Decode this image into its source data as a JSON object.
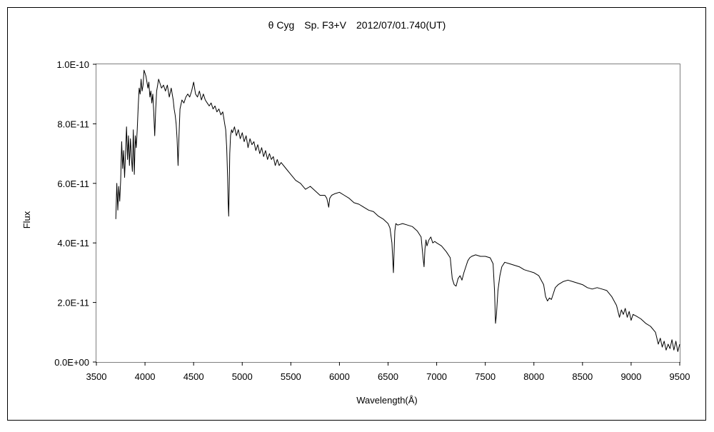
{
  "chart_data": {
    "type": "line",
    "title": "θ Cyg　Sp. F3+V　2012/07/01.740(UT)",
    "xlabel": "Wavelength(Å)",
    "ylabel": "Flux",
    "xlim": [
      3500,
      9500
    ],
    "ylim": [
      0,
      1e-10
    ],
    "x_ticks": [
      3500,
      4000,
      4500,
      5000,
      5500,
      6000,
      6500,
      7000,
      7500,
      8000,
      8500,
      9000,
      9500
    ],
    "x_tick_labels": [
      "3500",
      "4000",
      "4500",
      "5000",
      "5500",
      "6000",
      "6500",
      "7000",
      "7500",
      "8000",
      "8500",
      "9000",
      "9500"
    ],
    "y_ticks": [
      0,
      2e-11,
      4e-11,
      6e-11,
      8e-11,
      1e-10
    ],
    "y_tick_labels": [
      "0.0E+00",
      "2.0E-11",
      "4.0E-11",
      "6.0E-11",
      "8.0E-11",
      "1.0E-10"
    ],
    "grid": false,
    "legend": "none",
    "series": [
      {
        "color": "#000000",
        "x": [
          3700,
          3710,
          3720,
          3730,
          3740,
          3750,
          3760,
          3770,
          3780,
          3790,
          3800,
          3810,
          3820,
          3830,
          3840,
          3850,
          3860,
          3870,
          3880,
          3890,
          3900,
          3910,
          3920,
          3930,
          3940,
          3950,
          3960,
          3970,
          3980,
          3990,
          4000,
          4010,
          4020,
          4030,
          4040,
          4050,
          4060,
          4070,
          4080,
          4090,
          4100,
          4110,
          4120,
          4130,
          4140,
          4150,
          4170,
          4190,
          4210,
          4230,
          4250,
          4270,
          4290,
          4300,
          4310,
          4320,
          4330,
          4340,
          4350,
          4360,
          4380,
          4400,
          4420,
          4440,
          4460,
          4480,
          4500,
          4520,
          4540,
          4560,
          4580,
          4600,
          4620,
          4640,
          4660,
          4680,
          4700,
          4720,
          4740,
          4760,
          4780,
          4800,
          4810,
          4820,
          4830,
          4840,
          4850,
          4855,
          4861,
          4866,
          4872,
          4880,
          4890,
          4900,
          4920,
          4940,
          4960,
          4980,
          5000,
          5020,
          5040,
          5060,
          5080,
          5100,
          5120,
          5140,
          5160,
          5180,
          5200,
          5220,
          5240,
          5260,
          5280,
          5300,
          5320,
          5340,
          5360,
          5380,
          5400,
          5450,
          5500,
          5550,
          5600,
          5650,
          5700,
          5750,
          5800,
          5850,
          5870,
          5880,
          5890,
          5900,
          5920,
          5950,
          6000,
          6050,
          6100,
          6150,
          6200,
          6250,
          6300,
          6350,
          6400,
          6450,
          6500,
          6520,
          6540,
          6555,
          6563,
          6570,
          6580,
          6600,
          6650,
          6700,
          6750,
          6800,
          6840,
          6860,
          6870,
          6880,
          6890,
          6900,
          6920,
          6940,
          6960,
          6980,
          7000,
          7050,
          7100,
          7140,
          7160,
          7180,
          7200,
          7220,
          7240,
          7260,
          7280,
          7300,
          7320,
          7340,
          7360,
          7400,
          7450,
          7500,
          7550,
          7580,
          7595,
          7605,
          7615,
          7630,
          7650,
          7670,
          7700,
          7750,
          7800,
          7850,
          7900,
          7950,
          8000,
          8050,
          8100,
          8120,
          8140,
          8160,
          8180,
          8200,
          8220,
          8250,
          8300,
          8350,
          8400,
          8450,
          8500,
          8550,
          8600,
          8650,
          8700,
          8750,
          8800,
          8850,
          8880,
          8900,
          8920,
          8940,
          8960,
          8980,
          9000,
          9020,
          9050,
          9100,
          9150,
          9200,
          9250,
          9280,
          9300,
          9320,
          9340,
          9360,
          9380,
          9400,
          9420,
          9440,
          9460,
          9480,
          9500
        ],
        "y": [
          4.8e-11,
          6e-11,
          5.1e-11,
          5.9e-11,
          5.4e-11,
          6.1e-11,
          7.4e-11,
          6.5e-11,
          7.1e-11,
          6.2e-11,
          7e-11,
          7.9e-11,
          6.8e-11,
          7.6e-11,
          6.6e-11,
          7.5e-11,
          6.9e-11,
          6.4e-11,
          7.8e-11,
          6.3e-11,
          7.6e-11,
          7.2e-11,
          7.8e-11,
          8.6e-11,
          9.2e-11,
          9e-11,
          9.5e-11,
          9.1e-11,
          9.3e-11,
          9.8e-11,
          9.7e-11,
          9.6e-11,
          9.4e-11,
          9.2e-11,
          9.4e-11,
          8.9e-11,
          9.1e-11,
          8.7e-11,
          9e-11,
          8.4e-11,
          7.6e-11,
          8.5e-11,
          9.1e-11,
          9.3e-11,
          9.5e-11,
          9.4e-11,
          9.2e-11,
          9.3e-11,
          9.1e-11,
          9.3e-11,
          8.9e-11,
          9.2e-11,
          8.8e-11,
          8.5e-11,
          8.3e-11,
          8e-11,
          7.5e-11,
          6.6e-11,
          7.6e-11,
          8.5e-11,
          8.8e-11,
          8.7e-11,
          8.9e-11,
          9e-11,
          8.9e-11,
          9.1e-11,
          9.4e-11,
          9e-11,
          8.9e-11,
          9.1e-11,
          8.8e-11,
          9e-11,
          8.8e-11,
          8.7e-11,
          8.6e-11,
          8.7e-11,
          8.5e-11,
          8.6e-11,
          8.4e-11,
          8.5e-11,
          8.3e-11,
          8.4e-11,
          8.2e-11,
          8e-11,
          7.8e-11,
          7.2e-11,
          6.2e-11,
          5.4e-11,
          4.9e-11,
          5.8e-11,
          7e-11,
          7.6e-11,
          7.8e-11,
          7.7e-11,
          7.9e-11,
          7.6e-11,
          7.8e-11,
          7.5e-11,
          7.7e-11,
          7.4e-11,
          7.6e-11,
          7.2e-11,
          7.5e-11,
          7.3e-11,
          7.4e-11,
          7.1e-11,
          7.3e-11,
          7e-11,
          7.2e-11,
          6.9e-11,
          7.1e-11,
          6.8e-11,
          7e-11,
          6.8e-11,
          6.9e-11,
          6.6e-11,
          6.8e-11,
          6.6e-11,
          6.7e-11,
          6.5e-11,
          6.3e-11,
          6.1e-11,
          6e-11,
          5.8e-11,
          5.9e-11,
          5.75e-11,
          5.6e-11,
          5.6e-11,
          5.5e-11,
          5.35e-11,
          5.2e-11,
          5.5e-11,
          5.6e-11,
          5.65e-11,
          5.7e-11,
          5.6e-11,
          5.5e-11,
          5.35e-11,
          5.3e-11,
          5.2e-11,
          5.1e-11,
          5.05e-11,
          4.9e-11,
          4.8e-11,
          4.65e-11,
          4.5e-11,
          4e-11,
          3e-11,
          3.8e-11,
          4.4e-11,
          4.65e-11,
          4.6e-11,
          4.65e-11,
          4.6e-11,
          4.55e-11,
          4.4e-11,
          4.2e-11,
          3.5e-11,
          3.2e-11,
          3.8e-11,
          4.1e-11,
          3.9e-11,
          4.1e-11,
          4.2e-11,
          4e-11,
          4.05e-11,
          4e-11,
          3.9e-11,
          3.7e-11,
          3.5e-11,
          2.8e-11,
          2.6e-11,
          2.55e-11,
          2.8e-11,
          2.9e-11,
          2.75e-11,
          3e-11,
          3.2e-11,
          3.4e-11,
          3.5e-11,
          3.55e-11,
          3.6e-11,
          3.55e-11,
          3.55e-11,
          3.5e-11,
          3.3e-11,
          2.4e-11,
          1.3e-11,
          1.6e-11,
          2.4e-11,
          2.9e-11,
          3.2e-11,
          3.35e-11,
          3.3e-11,
          3.25e-11,
          3.2e-11,
          3.1e-11,
          3.05e-11,
          3e-11,
          2.9e-11,
          2.6e-11,
          2.2e-11,
          2.05e-11,
          2.15e-11,
          2.1e-11,
          2.3e-11,
          2.5e-11,
          2.6e-11,
          2.7e-11,
          2.75e-11,
          2.7e-11,
          2.65e-11,
          2.6e-11,
          2.5e-11,
          2.45e-11,
          2.5e-11,
          2.45e-11,
          2.4e-11,
          2.2e-11,
          1.9e-11,
          1.5e-11,
          1.75e-11,
          1.6e-11,
          1.8e-11,
          1.5e-11,
          1.7e-11,
          1.4e-11,
          1.6e-11,
          1.55e-11,
          1.45e-11,
          1.3e-11,
          1.2e-11,
          1e-11,
          6e-12,
          8e-12,
          5e-12,
          7e-12,
          4e-12,
          6e-12,
          4.5e-12,
          7.5e-12,
          4e-12,
          7e-12,
          3.5e-12,
          6e-12
        ]
      }
    ]
  }
}
